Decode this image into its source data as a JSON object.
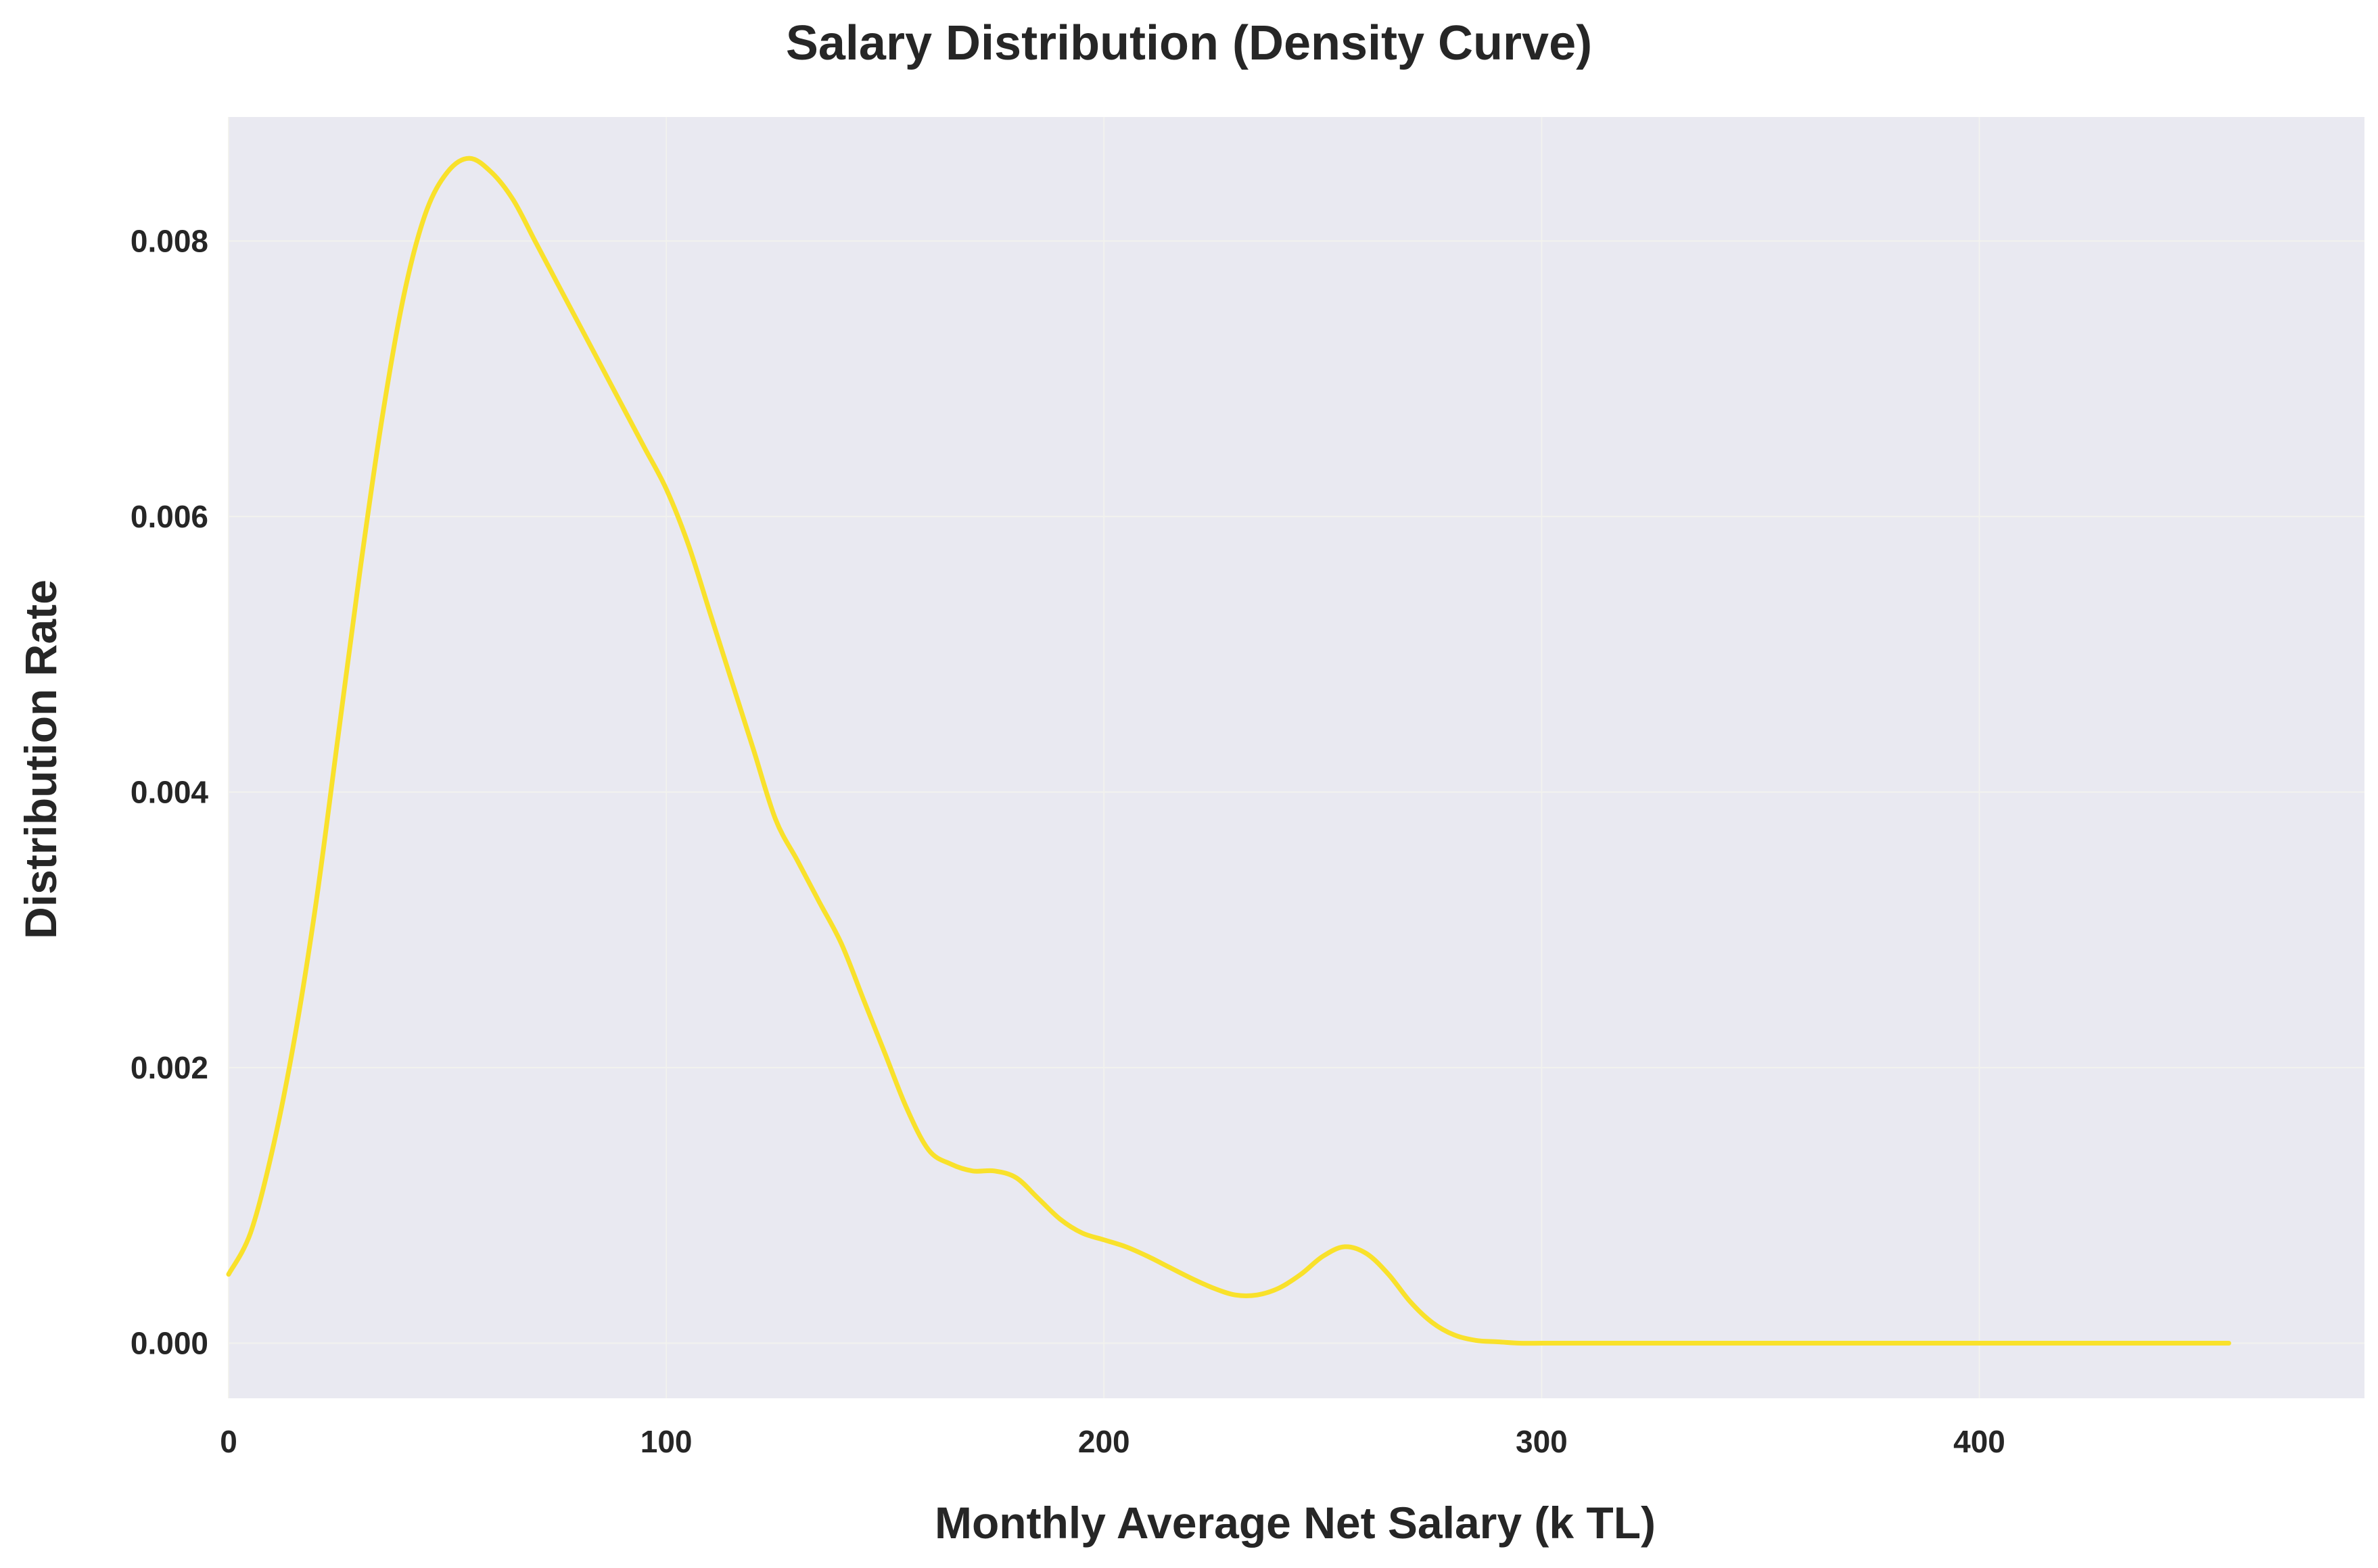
{
  "chart_data": {
    "type": "line",
    "title": "Salary Distribution (Density Curve)",
    "xlabel": "Monthly Average Net Salary (k TL)",
    "ylabel": "Distribution Rate",
    "xlim": [
      0,
      488
    ],
    "ylim": [
      -0.0004,
      0.0089
    ],
    "x_ticks": [
      0,
      100,
      200,
      300,
      400
    ],
    "x_tick_labels": [
      "0",
      "100",
      "200",
      "300",
      "400"
    ],
    "y_ticks": [
      0,
      0.002,
      0.004,
      0.006,
      0.008
    ],
    "y_tick_labels": [
      "0.000",
      "0.002",
      "0.004",
      "0.006",
      "0.008"
    ],
    "grid": true,
    "legend": "none",
    "colors": {
      "line": "#f9e12b",
      "plot_bg": "#e9e9f1",
      "grid": "#f2f2ee",
      "text": "#262626"
    },
    "series": [
      {
        "x": [
          0,
          5,
          10,
          15,
          20,
          25,
          30,
          35,
          40,
          45,
          50,
          55,
          60,
          65,
          70,
          75,
          80,
          85,
          90,
          95,
          100,
          105,
          110,
          115,
          120,
          125,
          130,
          135,
          140,
          145,
          150,
          155,
          160,
          165,
          170,
          175,
          180,
          185,
          190,
          195,
          200,
          205,
          210,
          215,
          220,
          225,
          230,
          235,
          240,
          245,
          250,
          255,
          260,
          265,
          270,
          275,
          280,
          285,
          290,
          295,
          300,
          305,
          310,
          315,
          320,
          325,
          330,
          335,
          340,
          345,
          350,
          360,
          380,
          400,
          420,
          440,
          457
        ],
        "y": [
          0.0005,
          0.0008,
          0.0014,
          0.0022,
          0.0032,
          0.0044,
          0.0056,
          0.0067,
          0.0076,
          0.0082,
          0.0085,
          0.0086,
          0.0085,
          0.0083,
          0.008,
          0.0077,
          0.0074,
          0.0071,
          0.0068,
          0.0065,
          0.0062,
          0.0058,
          0.0053,
          0.0048,
          0.0043,
          0.0038,
          0.0035,
          0.0032,
          0.0029,
          0.0025,
          0.0021,
          0.0017,
          0.0014,
          0.0013,
          0.00125,
          0.00125,
          0.0012,
          0.00105,
          0.0009,
          0.0008,
          0.00075,
          0.0007,
          0.00063,
          0.00055,
          0.00047,
          0.0004,
          0.00035,
          0.00035,
          0.0004,
          0.0005,
          0.00063,
          0.0007,
          0.00065,
          0.0005,
          0.0003,
          0.00015,
          6e-05,
          2e-05,
          1e-05,
          0,
          0,
          0,
          0,
          0,
          0,
          0,
          0,
          0,
          0,
          0,
          0,
          0,
          0,
          0,
          0,
          0,
          0
        ]
      }
    ]
  }
}
